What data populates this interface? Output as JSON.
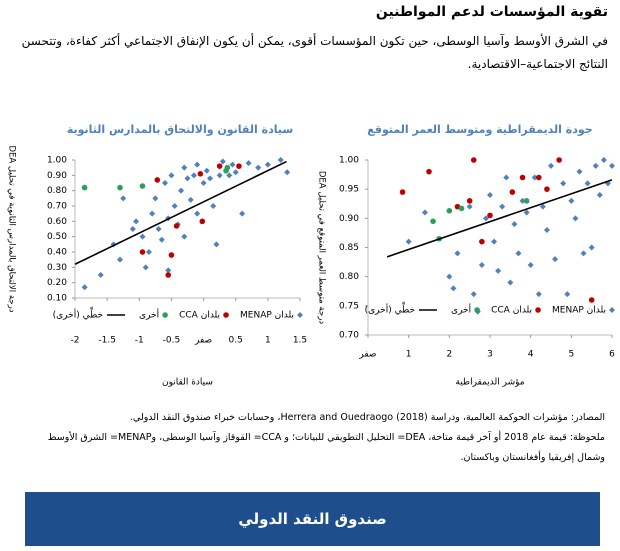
{
  "header": {
    "title": "تقوية المؤسسات لدعم المواطنين",
    "text": "في الشرق الأوسط وآسيا الوسطى، حين تكون المؤسسات أقوى، يمكن أن يكون الإنفاق الاجتماعي أكثر كفاءة، وتتحسن النتائج الاجتماعية–الاقتصادية."
  },
  "chart_data": [
    {
      "type": "scatter",
      "title": "سيادة القانون والالتحاق بالمدارس الثانوية",
      "x_label": "سيادة القانون",
      "y_label": "درجة الالتحاق بالمدارس الثانوية في تحليل DEA",
      "xlim": [
        -2,
        1.5
      ],
      "ylim": [
        0.1,
        1.0
      ],
      "xticks": [
        -2,
        -1.5,
        -1,
        -0.5,
        {
          "value": 0,
          "label": "صفر"
        },
        0.5,
        1,
        1.5
      ],
      "yticks": [
        {
          "value": 0.1,
          "label": "0.10"
        },
        {
          "value": 0.2,
          "label": "0.20"
        },
        {
          "value": 0.3,
          "label": "0.30"
        },
        {
          "value": 0.4,
          "label": "0.40"
        },
        {
          "value": 0.5,
          "label": "0.50"
        },
        {
          "value": 0.6,
          "label": "0.60"
        },
        {
          "value": 0.7,
          "label": "0.70"
        },
        {
          "value": 0.8,
          "label": "0.80"
        },
        {
          "value": 0.9,
          "label": "0.90"
        },
        {
          "value": 1.0,
          "label": "1.00"
        }
      ],
      "series": [
        {
          "name": "بلدان MENAP",
          "color": "#4f81bd",
          "marker": "diamond",
          "x": [
            -1.85,
            -1.6,
            -1.4,
            -1.3,
            -1.1,
            -1.05,
            -0.95,
            -0.9,
            -0.85,
            -0.8,
            -0.75,
            -0.7,
            -0.65,
            -0.6,
            -0.55,
            -0.5,
            -0.45,
            -0.4,
            -0.35,
            -0.3,
            -0.3,
            -0.25,
            -0.2,
            -0.15,
            -0.1,
            -0.1,
            0.0,
            0.05,
            0.1,
            0.15,
            0.2,
            0.25,
            0.3,
            0.4,
            0.5,
            0.6,
            0.7,
            0.85,
            1.0,
            1.2,
            1.3,
            0.45,
            -0.55,
            -1.25
          ],
          "values": [
            0.17,
            0.25,
            0.45,
            0.35,
            0.55,
            0.6,
            0.5,
            0.3,
            0.4,
            0.65,
            0.75,
            0.55,
            0.48,
            0.85,
            0.62,
            0.9,
            0.7,
            0.58,
            0.8,
            0.95,
            0.5,
            0.88,
            0.74,
            0.9,
            0.97,
            0.65,
            0.85,
            0.93,
            0.88,
            0.7,
            0.45,
            0.9,
            0.99,
            0.9,
            0.92,
            0.65,
            0.98,
            0.95,
            0.97,
            1.0,
            0.92,
            0.97,
            0.28,
            0.75
          ]
        },
        {
          "name": "بلدان CCA",
          "color": "#c00000",
          "marker": "circle",
          "x": [
            -0.72,
            -0.42,
            -0.95,
            -0.5,
            -0.55,
            -0.02,
            0.25,
            0.55,
            -0.05
          ],
          "values": [
            0.87,
            0.57,
            0.4,
            0.38,
            0.25,
            0.6,
            0.96,
            0.96,
            0.91
          ]
        },
        {
          "name": "أخرى",
          "color": "#2ca05a",
          "marker": "circle",
          "x": [
            -1.85,
            -1.3,
            -0.95,
            0.35,
            0.37
          ],
          "values": [
            0.82,
            0.82,
            0.83,
            0.93,
            0.95
          ]
        }
      ],
      "trendline": {
        "name": "خطِّي (أخرى)",
        "color": "#000000",
        "x": [
          -2,
          1.29
        ],
        "values": [
          0.32,
          0.99
        ]
      }
    },
    {
      "type": "scatter",
      "title": "جودة الديمقراطية ومتوسط العمر المتوقع",
      "x_label": "مؤشر الديمقراطية",
      "y_label": "درجة متوسط العمر المتوقع في تحليل DEA",
      "xlim": [
        0,
        6
      ],
      "ylim": [
        0.7,
        1.0
      ],
      "xticks": [
        {
          "value": 0,
          "label": "صفر"
        },
        1,
        2,
        3,
        4,
        5,
        6
      ],
      "yticks": [
        {
          "value": 0.7,
          "label": "0.70"
        },
        0.75,
        {
          "value": 0.8,
          "label": "0.80"
        },
        0.85,
        {
          "value": 0.9,
          "label": "0.90"
        },
        0.95,
        {
          "value": 1.0,
          "label": "1.00"
        }
      ],
      "series": [
        {
          "name": "بلدان MENAP",
          "color": "#4f81bd",
          "marker": "diamond",
          "x": [
            1.0,
            1.4,
            2.0,
            2.1,
            2.2,
            2.5,
            2.6,
            2.7,
            2.8,
            2.9,
            3.0,
            3.1,
            3.2,
            3.3,
            3.4,
            3.5,
            3.6,
            3.7,
            3.8,
            3.9,
            4.0,
            4.1,
            4.2,
            4.3,
            4.4,
            4.5,
            4.6,
            4.8,
            5.0,
            5.1,
            5.2,
            5.4,
            5.5,
            5.6,
            5.7,
            5.8,
            5.9,
            6.0,
            5.3,
            4.9
          ],
          "values": [
            0.86,
            0.91,
            0.8,
            0.78,
            0.84,
            0.92,
            0.77,
            0.74,
            0.82,
            0.9,
            0.94,
            0.86,
            0.81,
            0.92,
            0.97,
            0.79,
            0.89,
            0.84,
            0.93,
            0.91,
            0.82,
            0.97,
            0.77,
            0.92,
            0.88,
            0.99,
            0.83,
            0.96,
            0.93,
            0.9,
            0.98,
            0.96,
            0.85,
            0.99,
            0.94,
            1.0,
            0.96,
            0.99,
            0.84,
            0.77
          ]
        },
        {
          "name": "بلدان CCA",
          "color": "#c00000",
          "marker": "circle",
          "x": [
            0.85,
            1.5,
            2.2,
            2.5,
            3.0,
            3.55,
            3.8,
            4.2,
            4.4,
            4.7,
            2.6,
            5.5,
            2.8
          ],
          "values": [
            0.945,
            0.98,
            0.92,
            0.93,
            0.905,
            0.945,
            0.97,
            0.97,
            0.95,
            1.0,
            1.0,
            0.76,
            0.86
          ]
        },
        {
          "name": "أخرى",
          "color": "#2ca05a",
          "marker": "circle",
          "x": [
            1.6,
            1.75,
            2.0,
            2.3,
            3.9
          ],
          "values": [
            0.895,
            0.865,
            0.913,
            0.917,
            0.93
          ]
        }
      ],
      "trendline": {
        "name": "خطِّي (أخرى)",
        "color": "#000000",
        "x": [
          0.47,
          6
        ],
        "values": [
          0.834,
          0.966
        ]
      }
    }
  ],
  "notes": {
    "sources": "المصادر: مؤشرات الحوكمة العالمية، ودراسة Herrera and Ouedraogo (2018)، وحسابات خبراء صندوق النقد الدولي.",
    "note": "ملحوظة: قيمة عام 2018 أو آخر قيمة متاحة، DEA= التحليل التطويقي للبيانات؛ و CCA= القوقاز وآسيا الوسطى، وMENAP= الشرق الأوسط وشمال إفريقيا وأفغانستان وباكستان."
  },
  "footer": {
    "label": "صندوق النقد الدولي"
  }
}
